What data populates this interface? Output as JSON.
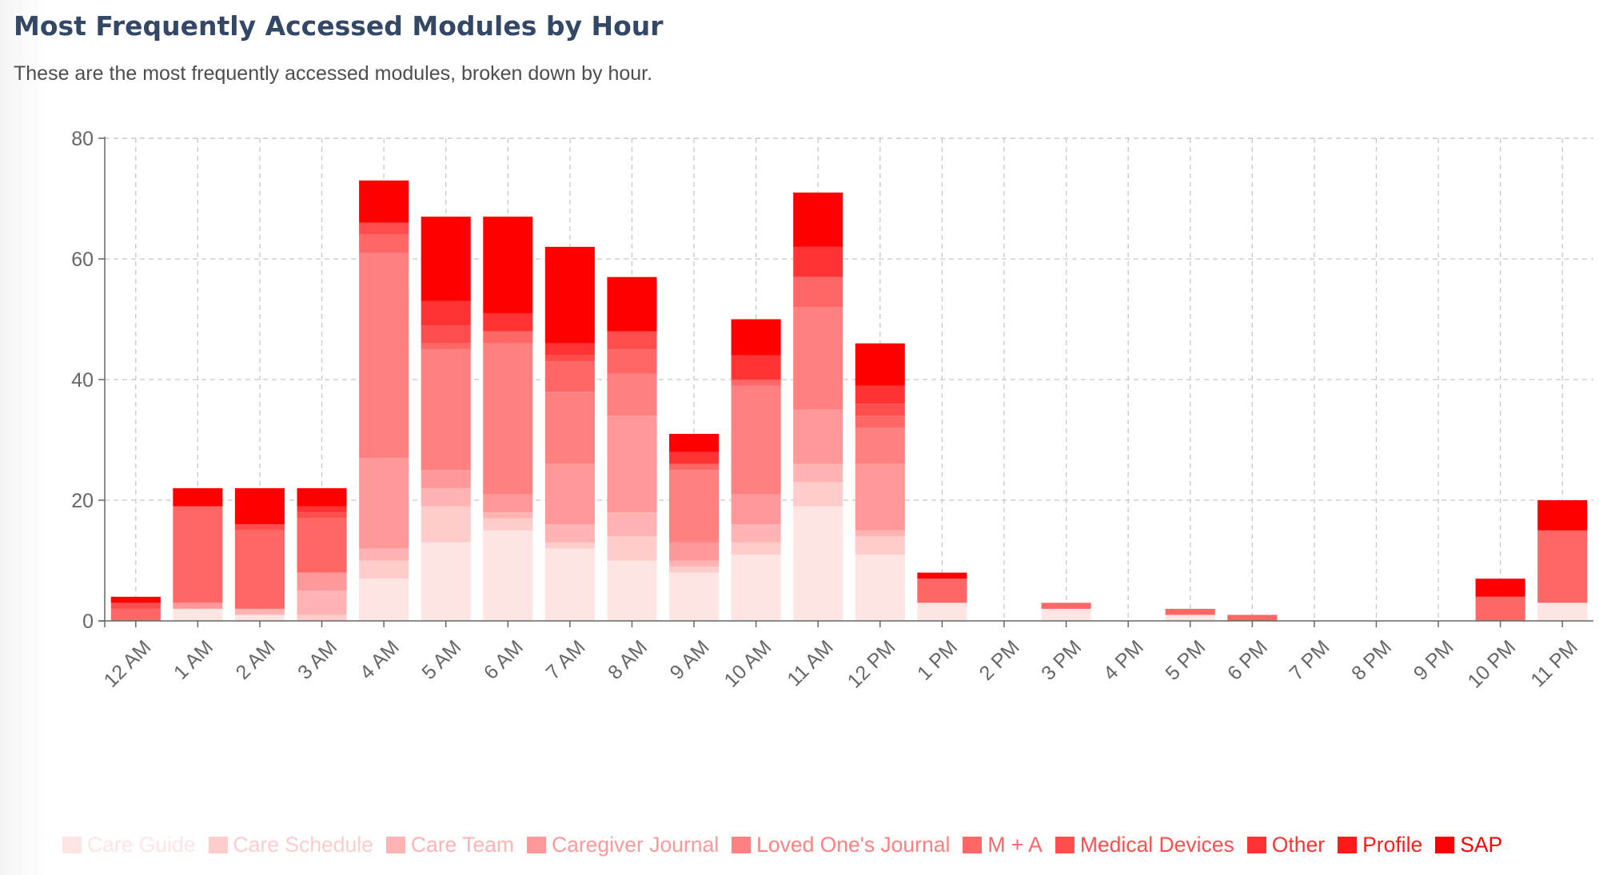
{
  "header": {
    "title": "Most Frequently Accessed Modules by Hour",
    "subtitle": "These are the most frequently accessed modules, broken down by hour."
  },
  "chart_data": {
    "type": "bar",
    "stacked": true,
    "title": "",
    "xlabel": "",
    "ylabel": "",
    "ylim": [
      0,
      80
    ],
    "yticks": [
      0,
      20,
      40,
      60,
      80
    ],
    "grid": true,
    "legend_position": "bottom",
    "categories": [
      "12 AM",
      "1 AM",
      "2 AM",
      "3 AM",
      "4 AM",
      "5 AM",
      "6 AM",
      "7 AM",
      "8 AM",
      "9 AM",
      "10 AM",
      "11 AM",
      "12 PM",
      "1 PM",
      "2 PM",
      "3 PM",
      "4 PM",
      "5 PM",
      "6 PM",
      "7 PM",
      "8 PM",
      "9 PM",
      "10 PM",
      "11 PM"
    ],
    "series": [
      {
        "name": "Care Guide",
        "color": "#ffe4e4",
        "values": [
          0,
          2,
          1,
          0,
          7,
          13,
          15,
          12,
          10,
          8,
          11,
          19,
          11,
          3,
          0,
          2,
          0,
          1,
          0,
          0,
          0,
          0,
          0,
          3
        ]
      },
      {
        "name": "Care Schedule",
        "color": "#ffcccc",
        "values": [
          0,
          0,
          0,
          1,
          3,
          6,
          2,
          1,
          4,
          1,
          2,
          4,
          3,
          0,
          0,
          0,
          0,
          0,
          0,
          0,
          0,
          0,
          0,
          0
        ]
      },
      {
        "name": "Care Team",
        "color": "#ffb3b3",
        "values": [
          0,
          0,
          1,
          4,
          2,
          3,
          1,
          3,
          4,
          1,
          3,
          3,
          1,
          0,
          0,
          0,
          0,
          0,
          0,
          0,
          0,
          0,
          0,
          0
        ]
      },
      {
        "name": "Caregiver Journal",
        "color": "#ff9999",
        "values": [
          0,
          1,
          0,
          3,
          15,
          3,
          3,
          10,
          16,
          3,
          5,
          9,
          11,
          0,
          0,
          0,
          0,
          0,
          0,
          0,
          0,
          0,
          0,
          0
        ]
      },
      {
        "name": "Loved One's Journal",
        "color": "#ff8080",
        "values": [
          0,
          0,
          0,
          0,
          34,
          20,
          25,
          12,
          7,
          12,
          18,
          17,
          6,
          0,
          0,
          0,
          0,
          0,
          0,
          0,
          0,
          0,
          0,
          0
        ]
      },
      {
        "name": "M + A",
        "color": "#ff6666",
        "values": [
          2,
          16,
          13,
          9,
          3,
          1,
          2,
          5,
          4,
          1,
          1,
          5,
          2,
          4,
          0,
          1,
          0,
          1,
          1,
          0,
          0,
          0,
          4,
          12
        ]
      },
      {
        "name": "Medical Devices",
        "color": "#ff4d4d",
        "values": [
          1,
          0,
          1,
          1,
          2,
          3,
          0,
          1,
          3,
          0,
          0,
          0,
          2,
          0,
          0,
          0,
          0,
          0,
          0,
          0,
          0,
          0,
          0,
          0
        ]
      },
      {
        "name": "Other",
        "color": "#ff3333",
        "values": [
          0,
          0,
          0,
          1,
          0,
          4,
          3,
          2,
          0,
          2,
          4,
          5,
          3,
          0,
          0,
          0,
          0,
          0,
          0,
          0,
          0,
          0,
          0,
          0
        ]
      },
      {
        "name": "Profile",
        "color": "#ff1a1a",
        "values": [
          0,
          0,
          0,
          0,
          0,
          0,
          0,
          0,
          0,
          0,
          0,
          0,
          0,
          0,
          0,
          0,
          0,
          0,
          0,
          0,
          0,
          0,
          0,
          0
        ]
      },
      {
        "name": "SAP",
        "color": "#ff0000",
        "values": [
          1,
          3,
          6,
          3,
          7,
          14,
          16,
          16,
          9,
          3,
          6,
          9,
          7,
          1,
          0,
          0,
          0,
          0,
          0,
          0,
          0,
          0,
          3,
          5
        ]
      }
    ]
  }
}
